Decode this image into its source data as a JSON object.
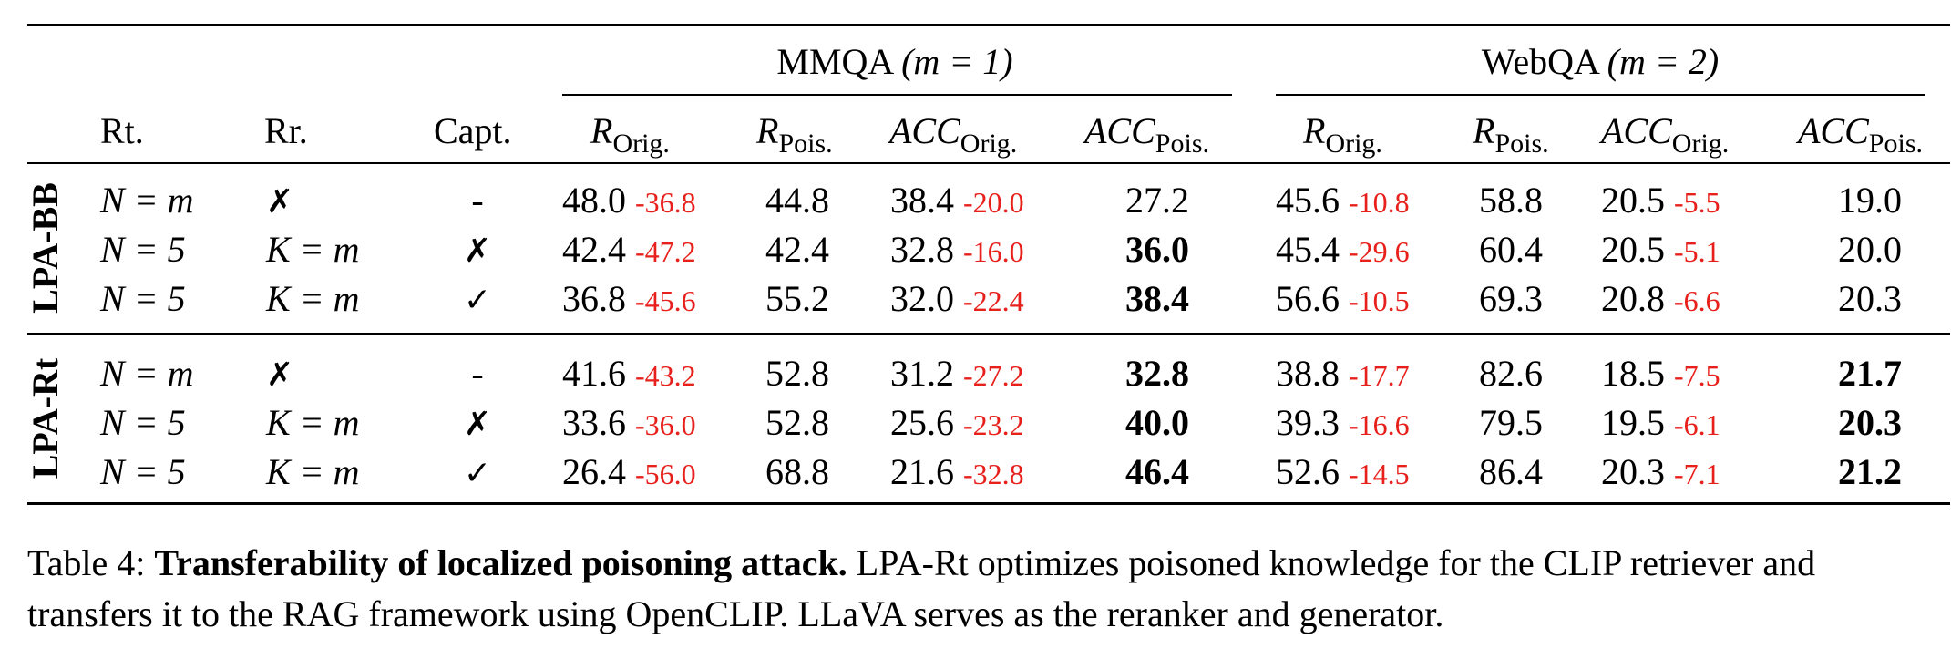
{
  "table": {
    "groups": [
      {
        "label": "MMQA",
        "param": "(m = 1)"
      },
      {
        "label": "WebQA",
        "param": "(m = 2)"
      }
    ],
    "columns": {
      "rt": "Rt.",
      "rr": "Rr.",
      "capt": "Capt.",
      "r": "R",
      "acc": "ACC",
      "orig": "Orig.",
      "pois": "Pois."
    },
    "sections": [
      {
        "label": "LPA-BB",
        "rows": [
          {
            "rt": "N = m",
            "rr": "✗",
            "capt": "-",
            "mmqa": {
              "r_orig": "48.0",
              "r_orig_d": "-36.8",
              "r_pois": "44.8",
              "acc_orig": "38.4",
              "acc_orig_d": "-20.0",
              "acc_pois": "27.2",
              "acc_pois_bold": false
            },
            "webqa": {
              "r_orig": "45.6",
              "r_orig_d": "-10.8",
              "r_pois": "58.8",
              "acc_orig": "20.5",
              "acc_orig_d": "-5.5",
              "acc_pois": "19.0",
              "acc_pois_bold": false
            }
          },
          {
            "rt": "N = 5",
            "rr": "K = m",
            "capt": "✗",
            "mmqa": {
              "r_orig": "42.4",
              "r_orig_d": "-47.2",
              "r_pois": "42.4",
              "acc_orig": "32.8",
              "acc_orig_d": "-16.0",
              "acc_pois": "36.0",
              "acc_pois_bold": true
            },
            "webqa": {
              "r_orig": "45.4",
              "r_orig_d": "-29.6",
              "r_pois": "60.4",
              "acc_orig": "20.5",
              "acc_orig_d": "-5.1",
              "acc_pois": "20.0",
              "acc_pois_bold": false
            }
          },
          {
            "rt": "N = 5",
            "rr": "K = m",
            "capt": "✓",
            "mmqa": {
              "r_orig": "36.8",
              "r_orig_d": "-45.6",
              "r_pois": "55.2",
              "acc_orig": "32.0",
              "acc_orig_d": "-22.4",
              "acc_pois": "38.4",
              "acc_pois_bold": true
            },
            "webqa": {
              "r_orig": "56.6",
              "r_orig_d": "-10.5",
              "r_pois": "69.3",
              "acc_orig": "20.8",
              "acc_orig_d": "-6.6",
              "acc_pois": "20.3",
              "acc_pois_bold": false
            }
          }
        ]
      },
      {
        "label": "LPA-Rt",
        "rows": [
          {
            "rt": "N = m",
            "rr": "✗",
            "capt": "-",
            "mmqa": {
              "r_orig": "41.6",
              "r_orig_d": "-43.2",
              "r_pois": "52.8",
              "acc_orig": "31.2",
              "acc_orig_d": "-27.2",
              "acc_pois": "32.8",
              "acc_pois_bold": true
            },
            "webqa": {
              "r_orig": "38.8",
              "r_orig_d": "-17.7",
              "r_pois": "82.6",
              "acc_orig": "18.5",
              "acc_orig_d": "-7.5",
              "acc_pois": "21.7",
              "acc_pois_bold": true
            }
          },
          {
            "rt": "N = 5",
            "rr": "K = m",
            "capt": "✗",
            "mmqa": {
              "r_orig": "33.6",
              "r_orig_d": "-36.0",
              "r_pois": "52.8",
              "acc_orig": "25.6",
              "acc_orig_d": "-23.2",
              "acc_pois": "40.0",
              "acc_pois_bold": true
            },
            "webqa": {
              "r_orig": "39.3",
              "r_orig_d": "-16.6",
              "r_pois": "79.5",
              "acc_orig": "19.5",
              "acc_orig_d": "-6.1",
              "acc_pois": "20.3",
              "acc_pois_bold": true
            }
          },
          {
            "rt": "N = 5",
            "rr": "K = m",
            "capt": "✓",
            "mmqa": {
              "r_orig": "26.4",
              "r_orig_d": "-56.0",
              "r_pois": "68.8",
              "acc_orig": "21.6",
              "acc_orig_d": "-32.8",
              "acc_pois": "46.4",
              "acc_pois_bold": true
            },
            "webqa": {
              "r_orig": "52.6",
              "r_orig_d": "-14.5",
              "r_pois": "86.4",
              "acc_orig": "20.3",
              "acc_orig_d": "-7.1",
              "acc_pois": "21.2",
              "acc_pois_bold": true
            }
          }
        ]
      }
    ]
  },
  "caption": {
    "label": "Table 4:",
    "title": "Transferability of localized poisoning attack.",
    "body": "LPA-Rt optimizes poisoned knowledge for the CLIP retriever and transfers it to the RAG framework using OpenCLIP. LLaVA serves as the reranker and generator."
  }
}
